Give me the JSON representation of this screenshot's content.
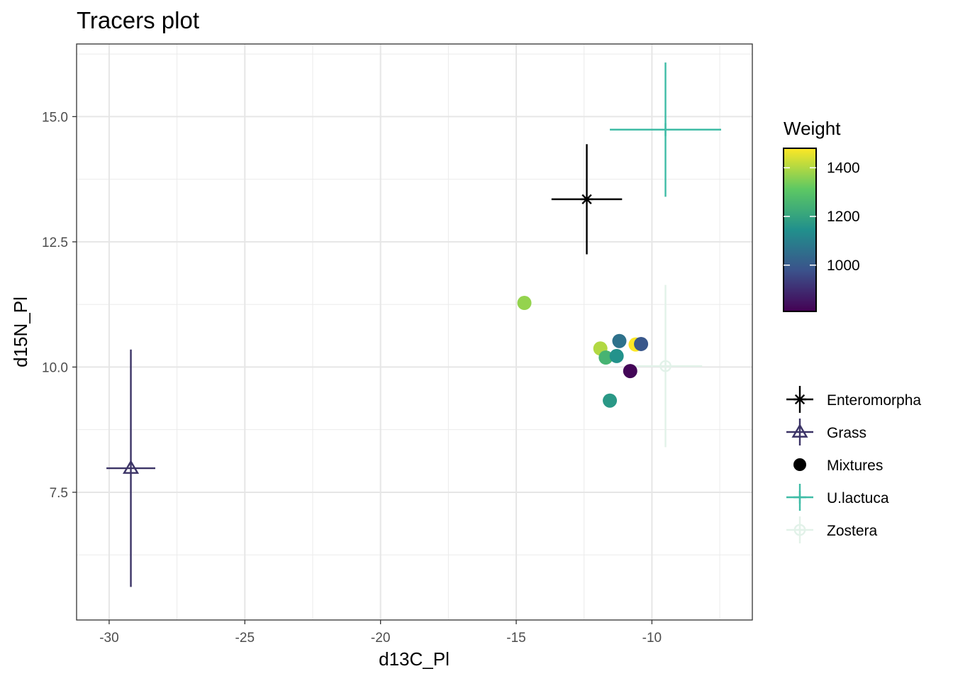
{
  "chart_data": {
    "type": "scatter",
    "title": "Tracers plot",
    "xlabel": "d13C_Pl",
    "ylabel": "d15N_Pl",
    "xlim": [
      -31.2,
      -6.3
    ],
    "ylim": [
      4.95,
      16.45
    ],
    "x_ticks": [
      -30,
      -25,
      -20,
      -15,
      -10
    ],
    "x_tick_labels": [
      "-30",
      "-25",
      "-20",
      "-15",
      "-10"
    ],
    "y_ticks": [
      7.5,
      10.0,
      12.5,
      15.0
    ],
    "y_tick_labels": [
      "7.5",
      "10.0",
      "12.5",
      "15.0"
    ],
    "grid": true,
    "sources": [
      {
        "name": "Enteromorpha",
        "shape": "asterisk",
        "color": "#000000",
        "x": -12.4,
        "x_err": 1.3,
        "y": 13.35,
        "y_err": 1.1
      },
      {
        "name": "Grass",
        "shape": "triangle",
        "color": "#3b3366",
        "x": -29.2,
        "x_err": 0.9,
        "y": 7.98,
        "y_err": 2.37
      },
      {
        "name": "U.lactuca",
        "shape": "plus",
        "color": "#3fbca6",
        "x": -9.5,
        "x_err": 2.05,
        "y": 14.74,
        "y_err": 1.34
      },
      {
        "name": "Zostera",
        "shape": "circle-plus",
        "color": "#e2f2e9",
        "x": -9.5,
        "x_err": 1.35,
        "y": 10.02,
        "y_err": 1.62
      }
    ],
    "mixtures": [
      {
        "x": -14.7,
        "y": 11.28,
        "weight": 1370
      },
      {
        "x": -11.9,
        "y": 10.37,
        "weight": 1400
      },
      {
        "x": -11.7,
        "y": 10.19,
        "weight": 1250
      },
      {
        "x": -11.3,
        "y": 10.22,
        "weight": 1150
      },
      {
        "x": -11.2,
        "y": 10.52,
        "weight": 1060
      },
      {
        "x": -11.55,
        "y": 9.33,
        "weight": 1170
      },
      {
        "x": -10.6,
        "y": 10.45,
        "weight": 1480
      },
      {
        "x": -10.8,
        "y": 9.92,
        "weight": 820
      },
      {
        "x": -10.4,
        "y": 10.46,
        "weight": 990
      }
    ],
    "colorbar": {
      "title": "Weight",
      "min": 810,
      "max": 1480,
      "ticks": [
        1000,
        1200,
        1400
      ],
      "tick_labels": [
        "1000",
        "1200",
        "1400"
      ],
      "stops": [
        "#440154",
        "#3b528b",
        "#21908c",
        "#5dc863",
        "#fde725"
      ]
    },
    "legend": {
      "placement": "right",
      "entries": [
        {
          "label": "Enteromorpha",
          "shape": "asterisk",
          "color": "#000000"
        },
        {
          "label": "Grass",
          "shape": "triangle",
          "color": "#3b3366"
        },
        {
          "label": "Mixtures",
          "shape": "dot",
          "color": "#000000"
        },
        {
          "label": "U.lactuca",
          "shape": "plus",
          "color": "#3fbca6"
        },
        {
          "label": "Zostera",
          "shape": "circle-plus",
          "color": "#e2f2e9"
        }
      ]
    }
  }
}
